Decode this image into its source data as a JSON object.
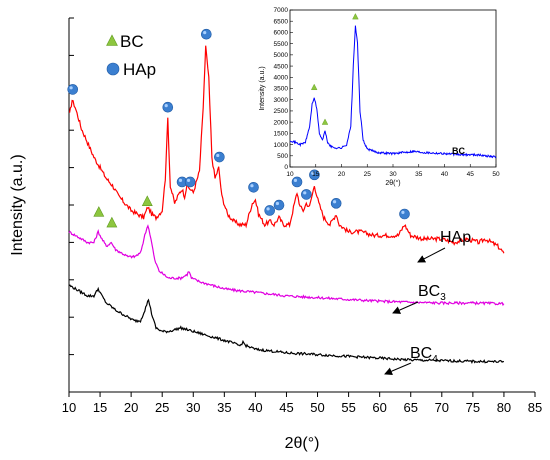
{
  "chart_data": [
    {
      "type": "line",
      "xlabel": "2θ(°)",
      "ylabel": "Intensity (a.u.)",
      "xlim": [
        10,
        85
      ],
      "xticks": [
        10,
        15,
        20,
        25,
        30,
        35,
        40,
        45,
        50,
        55,
        60,
        65,
        70,
        75,
        80,
        85
      ],
      "legend": [
        {
          "name": "BC",
          "marker": "triangle",
          "color": "#8dc63f"
        },
        {
          "name": "HAp",
          "marker": "circle",
          "color": "#3b7fd0"
        }
      ],
      "series": [
        {
          "name": "HAp",
          "color": "#ff0000",
          "label": "HAp",
          "points": [
            [
              10.1,
              0.78
            ],
            [
              10.5,
              0.82
            ],
            [
              11,
              0.8
            ],
            [
              12,
              0.74
            ],
            [
              13,
              0.7
            ],
            [
              14,
              0.66
            ],
            [
              15,
              0.63
            ],
            [
              16,
              0.6
            ],
            [
              17,
              0.58
            ],
            [
              18,
              0.55
            ],
            [
              19,
              0.53
            ],
            [
              20,
              0.51
            ],
            [
              21,
              0.5
            ],
            [
              22,
              0.49
            ],
            [
              22.7,
              0.52
            ],
            [
              23.3,
              0.5
            ],
            [
              24,
              0.49
            ],
            [
              25,
              0.51
            ],
            [
              25.5,
              0.6
            ],
            [
              25.9,
              0.77
            ],
            [
              26.3,
              0.58
            ],
            [
              27,
              0.53
            ],
            [
              27.8,
              0.56
            ],
            [
              28.2,
              0.57
            ],
            [
              28.6,
              0.55
            ],
            [
              29,
              0.58
            ],
            [
              29.5,
              0.57
            ],
            [
              30,
              0.56
            ],
            [
              31,
              0.62
            ],
            [
              31.6,
              0.8
            ],
            [
              32,
              0.97
            ],
            [
              32.5,
              0.88
            ],
            [
              33,
              0.66
            ],
            [
              33.5,
              0.6
            ],
            [
              34.1,
              0.63
            ],
            [
              34.6,
              0.55
            ],
            [
              35.5,
              0.5
            ],
            [
              36.5,
              0.48
            ],
            [
              37.5,
              0.47
            ],
            [
              38.5,
              0.47
            ],
            [
              39.5,
              0.53
            ],
            [
              40,
              0.54
            ],
            [
              40.5,
              0.5
            ],
            [
              41.5,
              0.47
            ],
            [
              42.3,
              0.48
            ],
            [
              43,
              0.47
            ],
            [
              43.8,
              0.49
            ],
            [
              44.5,
              0.47
            ],
            [
              45.5,
              0.47
            ],
            [
              46.3,
              0.53
            ],
            [
              46.7,
              0.56
            ],
            [
              47.2,
              0.52
            ],
            [
              47.7,
              0.51
            ],
            [
              48.2,
              0.53
            ],
            [
              48.7,
              0.52
            ],
            [
              49.5,
              0.58
            ],
            [
              50.2,
              0.53
            ],
            [
              51,
              0.49
            ],
            [
              52,
              0.47
            ],
            [
              53,
              0.5
            ],
            [
              53.5,
              0.47
            ],
            [
              55,
              0.45
            ],
            [
              57,
              0.45
            ],
            [
              59,
              0.44
            ],
            [
              61,
              0.44
            ],
            [
              63,
              0.44
            ],
            [
              64,
              0.47
            ],
            [
              65,
              0.44
            ],
            [
              67,
              0.43
            ],
            [
              70,
              0.43
            ],
            [
              72,
              0.42
            ],
            [
              74,
              0.43
            ],
            [
              76,
              0.42
            ],
            [
              77,
              0.43
            ],
            [
              78,
              0.42
            ],
            [
              79,
              0.41
            ],
            [
              80,
              0.39
            ]
          ]
        },
        {
          "name": "BC3",
          "color": "#e000e0",
          "label_main": "BC",
          "label_sub": "3",
          "points": [
            [
              10,
              0.45
            ],
            [
              11,
              0.44
            ],
            [
              12,
              0.43
            ],
            [
              13,
              0.42
            ],
            [
              14,
              0.42
            ],
            [
              14.7,
              0.45
            ],
            [
              15.3,
              0.43
            ],
            [
              16,
              0.41
            ],
            [
              16.8,
              0.42
            ],
            [
              17.5,
              0.4
            ],
            [
              18.5,
              0.39
            ],
            [
              19.5,
              0.38
            ],
            [
              20.5,
              0.38
            ],
            [
              21.5,
              0.39
            ],
            [
              22.2,
              0.44
            ],
            [
              22.7,
              0.47
            ],
            [
              23.2,
              0.43
            ],
            [
              23.8,
              0.37
            ],
            [
              24.5,
              0.34
            ],
            [
              26,
              0.32
            ],
            [
              28,
              0.32
            ],
            [
              29,
              0.33
            ],
            [
              29.3,
              0.34
            ],
            [
              29.7,
              0.32
            ],
            [
              31,
              0.31
            ],
            [
              33,
              0.3
            ],
            [
              35,
              0.29
            ],
            [
              37,
              0.285
            ],
            [
              40,
              0.28
            ],
            [
              45,
              0.27
            ],
            [
              50,
              0.265
            ],
            [
              55,
              0.26
            ],
            [
              60,
              0.255
            ],
            [
              65,
              0.252
            ],
            [
              70,
              0.25
            ],
            [
              75,
              0.25
            ],
            [
              80,
              0.248
            ]
          ]
        },
        {
          "name": "BC4",
          "color": "#000000",
          "label_main": "BC",
          "label_sub": "4",
          "points": [
            [
              10,
              0.3
            ],
            [
              11,
              0.29
            ],
            [
              12,
              0.28
            ],
            [
              13,
              0.27
            ],
            [
              14,
              0.27
            ],
            [
              14.7,
              0.29
            ],
            [
              15.3,
              0.27
            ],
            [
              16,
              0.25
            ],
            [
              16.8,
              0.24
            ],
            [
              17.5,
              0.23
            ],
            [
              18.5,
              0.22
            ],
            [
              19.5,
              0.21
            ],
            [
              20.5,
              0.2
            ],
            [
              21.5,
              0.2
            ],
            [
              22.2,
              0.23
            ],
            [
              22.8,
              0.26
            ],
            [
              23.3,
              0.22
            ],
            [
              24,
              0.18
            ],
            [
              25,
              0.17
            ],
            [
              26,
              0.17
            ],
            [
              28,
              0.18
            ],
            [
              30,
              0.17
            ],
            [
              32,
              0.16
            ],
            [
              34,
              0.15
            ],
            [
              36,
              0.14
            ],
            [
              37.5,
              0.13
            ],
            [
              38,
              0.14
            ],
            [
              38.5,
              0.13
            ],
            [
              40,
              0.12
            ],
            [
              45,
              0.11
            ],
            [
              50,
              0.105
            ],
            [
              55,
              0.1
            ],
            [
              60,
              0.095
            ],
            [
              65,
              0.09
            ],
            [
              70,
              0.088
            ],
            [
              75,
              0.086
            ],
            [
              80,
              0.085
            ]
          ]
        }
      ]
    },
    {
      "type": "line",
      "xlabel": "2θ(°)",
      "ylabel": "Intensity (a.u.)",
      "xlim": [
        10,
        50
      ],
      "ylim": [
        0,
        7000
      ],
      "xticks": [
        10,
        15,
        20,
        25,
        30,
        35,
        40,
        45,
        50
      ],
      "yticks": [
        0,
        500,
        1000,
        1500,
        2000,
        2500,
        3000,
        3500,
        4000,
        4500,
        5000,
        5500,
        6000,
        6500,
        7000
      ],
      "series": [
        {
          "name": "BC",
          "color": "#0000ff",
          "label": "BC",
          "points": [
            [
              10,
              1200
            ],
            [
              11,
              1100
            ],
            [
              12,
              1000
            ],
            [
              13,
              1100
            ],
            [
              13.8,
              1800
            ],
            [
              14.3,
              2800
            ],
            [
              14.7,
              3100
            ],
            [
              15.2,
              2600
            ],
            [
              15.7,
              1500
            ],
            [
              16.3,
              1200
            ],
            [
              16.8,
              1600
            ],
            [
              17.3,
              1100
            ],
            [
              18,
              900
            ],
            [
              19,
              850
            ],
            [
              20,
              850
            ],
            [
              21,
              1000
            ],
            [
              21.8,
              1800
            ],
            [
              22.3,
              4500
            ],
            [
              22.7,
              6300
            ],
            [
              23.1,
              5500
            ],
            [
              23.6,
              2500
            ],
            [
              24.2,
              1200
            ],
            [
              25,
              800
            ],
            [
              27,
              650
            ],
            [
              30,
              600
            ],
            [
              32,
              650
            ],
            [
              34,
              700
            ],
            [
              36,
              650
            ],
            [
              40,
              600
            ],
            [
              43,
              550
            ],
            [
              46,
              550
            ],
            [
              48,
              500
            ],
            [
              50,
              450
            ]
          ]
        }
      ],
      "markers": [
        {
          "type": "triangle",
          "x": 14.7,
          "y": 3550
        },
        {
          "type": "triangle",
          "x": 16.8,
          "y": 2000
        },
        {
          "type": "triangle",
          "x": 22.7,
          "y": 6700
        }
      ]
    }
  ],
  "main_markers": {
    "BC": [
      [
        14.8,
        0.505
      ],
      [
        16.9,
        0.475
      ],
      [
        22.6,
        0.535
      ]
    ],
    "HAp": [
      [
        10.6,
        0.85
      ],
      [
        25.9,
        0.8
      ],
      [
        28.2,
        0.59
      ],
      [
        29.5,
        0.59
      ],
      [
        32.1,
        1.005
      ],
      [
        34.2,
        0.66
      ],
      [
        39.7,
        0.575
      ],
      [
        42.3,
        0.51
      ],
      [
        43.8,
        0.525
      ],
      [
        46.7,
        0.59
      ],
      [
        48.2,
        0.555
      ],
      [
        49.5,
        0.61
      ],
      [
        53,
        0.53
      ],
      [
        64,
        0.5
      ]
    ]
  }
}
